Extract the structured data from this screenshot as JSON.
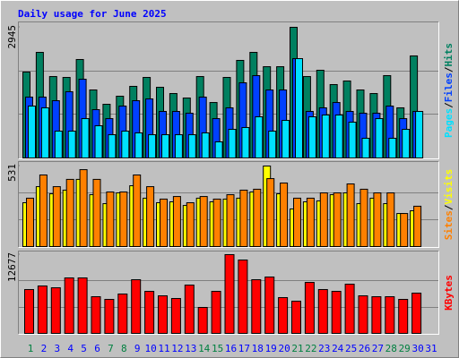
{
  "title": "Daily usage for June 2025",
  "legend_separator": "/",
  "chart_data": [
    {
      "type": "bar",
      "ylim": [
        0,
        2945
      ],
      "yticks": [
        2945
      ],
      "series": [
        {
          "name": "Pages",
          "color": "#00e0ff",
          "values": [
            1170,
            1130,
            605,
            605,
            887,
            726,
            524,
            605,
            565,
            524,
            524,
            524,
            524,
            565,
            363,
            645,
            686,
            928,
            605,
            847,
            2239,
            928,
            968,
            968,
            807,
            444,
            887,
            444,
            645,
            1049,
            null
          ]
        },
        {
          "name": "Files",
          "color": "#0040ff",
          "values": [
            1372,
            1372,
            1291,
            1493,
            1775,
            1089,
            887,
            1170,
            1291,
            1331,
            1049,
            1049,
            1009,
            1372,
            887,
            1130,
            1694,
            1856,
            1533,
            1533,
            2239,
            1049,
            1130,
            1250,
            1049,
            1009,
            1009,
            1170,
            887,
            1049,
            null
          ]
        },
        {
          "name": "Hits",
          "color": "#008060",
          "values": [
            1936,
            2380,
            1835,
            1815,
            2219,
            1533,
            1210,
            1392,
            1614,
            1815,
            1593,
            1452,
            1351,
            1835,
            1250,
            1815,
            2199,
            2380,
            2057,
            2057,
            2945,
            1835,
            1977,
            1654,
            1735,
            1533,
            1452,
            1856,
            1130,
            2300,
            null
          ]
        }
      ]
    },
    {
      "type": "bar",
      "ylim": [
        0,
        531
      ],
      "yticks": [
        531
      ],
      "series": [
        {
          "name": "Sites",
          "color": "#ff8000",
          "values": [
            319,
            472,
            395,
            443,
            507,
            443,
            360,
            360,
            472,
            395,
            313,
            330,
            289,
            330,
            313,
            342,
            372,
            378,
            448,
            419,
            319,
            319,
            354,
            354,
            413,
            378,
            354,
            354,
            218,
            266,
            null
          ]
        },
        {
          "name": "Visits",
          "color": "#ffff00",
          "values": [
            289,
            395,
            348,
            372,
            443,
            342,
            283,
            354,
            401,
            319,
            289,
            295,
            271,
            319,
            295,
            313,
            319,
            360,
            531,
            348,
            248,
            295,
            301,
            342,
            354,
            283,
            319,
            283,
            218,
            236,
            null
          ]
        }
      ]
    },
    {
      "type": "bar",
      "ylim": [
        0,
        12677
      ],
      "yticks": [
        12677
      ],
      "categories": [
        "1",
        "2",
        "3",
        "4",
        "5",
        "6",
        "7",
        "8",
        "9",
        "10",
        "11",
        "12",
        "13",
        "14",
        "15",
        "16",
        "17",
        "18",
        "19",
        "20",
        "21",
        "22",
        "23",
        "24",
        "25",
        "26",
        "27",
        "28",
        "29",
        "30",
        "31"
      ],
      "category_colors": [
        "#008040",
        "#0000ff",
        "#0000ff",
        "#0000ff",
        "#0000ff",
        "#0000ff",
        "#008040",
        "#008040",
        "#0000ff",
        "#0000ff",
        "#0000ff",
        "#0000ff",
        "#0000ff",
        "#008040",
        "#008040",
        "#0000ff",
        "#0000ff",
        "#0000ff",
        "#0000ff",
        "#0000ff",
        "#008040",
        "#008040",
        "#0000ff",
        "#0000ff",
        "#0000ff",
        "#0000ff",
        "#0000ff",
        "#008040",
        "#008040",
        "#0000ff",
        "#0000ff"
      ],
      "series": [
        {
          "name": "KBytes",
          "color": "#ff0000",
          "values": [
            7056,
            7632,
            7344,
            8928,
            8928,
            5904,
            5472,
            6336,
            8640,
            6768,
            6048,
            5616,
            7776,
            4176,
            6768,
            12677,
            11808,
            8640,
            9072,
            5760,
            5184,
            8208,
            7056,
            6768,
            7920,
            6048,
            5904,
            5904,
            5472,
            6480,
            null
          ]
        }
      ]
    }
  ]
}
